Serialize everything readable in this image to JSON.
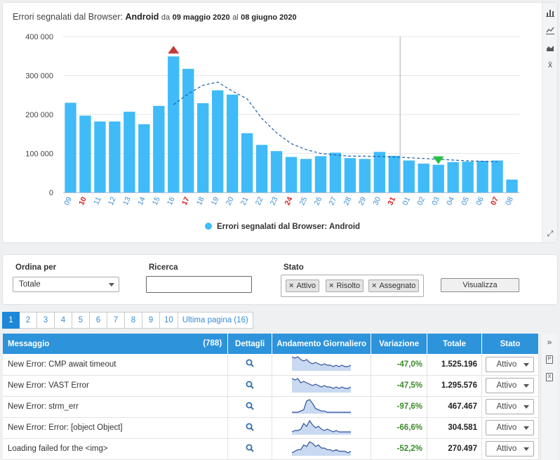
{
  "chart": {
    "title_prefix": "Errori segnalati dal Browser:",
    "title_subject": "Android",
    "title_from_word": "da",
    "title_from": "09 maggio 2020",
    "title_to_word": "al",
    "title_to": "08 giugno 2020",
    "legend": "Errori segnalati dal Browser: Android",
    "bar_color": "#40bbf8",
    "weekend_color": "#d42020",
    "weekday_color": "#3a8dd4",
    "max_marker_color": "#c43a3a",
    "min_marker_color": "#28c040"
  },
  "chart_data": {
    "type": "bar",
    "categories": [
      "09",
      "10",
      "11",
      "12",
      "13",
      "14",
      "15",
      "16",
      "17",
      "18",
      "19",
      "20",
      "21",
      "22",
      "23",
      "24",
      "25",
      "26",
      "27",
      "28",
      "29",
      "30",
      "31",
      "01",
      "02",
      "03",
      "04",
      "05",
      "06",
      "07",
      "08"
    ],
    "weekend_categories": [
      "10",
      "17",
      "24",
      "31",
      "07"
    ],
    "values": [
      230000,
      197000,
      182000,
      182000,
      207000,
      175000,
      222000,
      349000,
      317000,
      229000,
      262000,
      251000,
      152000,
      122000,
      106000,
      91000,
      86000,
      93000,
      102000,
      88000,
      86000,
      104000,
      94000,
      82000,
      74000,
      71000,
      78000,
      79000,
      81000,
      82000,
      33000
    ],
    "trend": [
      null,
      null,
      null,
      null,
      null,
      null,
      null,
      225000,
      253000,
      275000,
      283000,
      260000,
      240000,
      190000,
      153000,
      125000,
      110000,
      100000,
      96000,
      93000,
      93000,
      92000,
      91000,
      89000,
      87000,
      85000,
      83000,
      81000,
      80000,
      79000,
      null
    ],
    "ylim": [
      0,
      400000
    ],
    "yticks": [
      "0",
      "100 000",
      "200 000",
      "300 000",
      "400 000"
    ],
    "ytick_values": [
      0,
      100000,
      200000,
      300000,
      400000
    ],
    "max_index": 7,
    "min_index": 25,
    "vline_index": 23,
    "legend_position": "bottom"
  },
  "side_icons": [
    "bar-chart-icon",
    "line-chart-icon",
    "area-chart-icon",
    "average-icon"
  ],
  "filters": {
    "sort_label": "Ordina per",
    "sort_value": "Totale",
    "search_label": "Ricerca",
    "search_value": "",
    "status_label": "Stato",
    "tags": [
      "Attivo",
      "Risolto",
      "Assegnato"
    ],
    "tag_remove": "×",
    "button": "Visualizza"
  },
  "pagination": {
    "pages": [
      "1",
      "2",
      "3",
      "4",
      "5",
      "6",
      "7",
      "8",
      "9",
      "10"
    ],
    "last": "Ultima pagina (16)",
    "active": "1"
  },
  "table": {
    "headers": {
      "message": "Messaggio",
      "count": "(788)",
      "details": "Dettagli",
      "trend": "Andamento Giornaliero",
      "variation": "Variazione",
      "total": "Totale",
      "status": "Stato"
    },
    "rows": [
      {
        "message": "New Error: CMP await timeout",
        "variation": "-47,0%",
        "total": "1.525.196",
        "status": "Attivo",
        "spark": [
          9,
          8,
          9,
          7,
          6,
          7,
          5,
          4,
          5,
          4,
          3,
          4,
          3,
          3,
          2,
          3,
          2,
          3,
          2,
          2,
          3
        ]
      },
      {
        "message": "New Error: VAST Error",
        "variation": "-47,5%",
        "total": "1.295.576",
        "status": "Attivo",
        "spark": [
          9,
          8,
          9,
          6,
          7,
          6,
          5,
          4,
          5,
          4,
          3,
          4,
          3,
          3,
          2,
          3,
          2,
          3,
          2,
          2,
          3
        ]
      },
      {
        "message": "New Error: strm_err",
        "variation": "-97,6%",
        "total": "467.467",
        "status": "Attivo",
        "spark": [
          0,
          0,
          0,
          1,
          2,
          9,
          10,
          7,
          3,
          2,
          1,
          1,
          0,
          0,
          0,
          0,
          0,
          0,
          0,
          0,
          0
        ]
      },
      {
        "message": "New Error: Error: [object Object]",
        "variation": "-66,6%",
        "total": "304.581",
        "status": "Attivo",
        "spark": [
          1,
          2,
          2,
          3,
          7,
          5,
          9,
          6,
          4,
          5,
          3,
          2,
          3,
          2,
          1,
          2,
          1,
          1,
          1,
          1,
          1
        ]
      },
      {
        "message": "Loading failed for the <img>",
        "variation": "-52,2%",
        "total": "270.497",
        "status": "Attivo",
        "spark": [
          1,
          2,
          3,
          3,
          6,
          5,
          8,
          7,
          5,
          6,
          4,
          4,
          3,
          3,
          2,
          3,
          2,
          2,
          2,
          1,
          2
        ]
      }
    ]
  },
  "right_icons": [
    "expand-icon",
    "pdf-icon",
    "excel-icon"
  ],
  "right_icon_glyphs": {
    "expand": "»",
    "pdf": "P",
    "excel": "X"
  },
  "fullscreen_glyph": "⤢"
}
